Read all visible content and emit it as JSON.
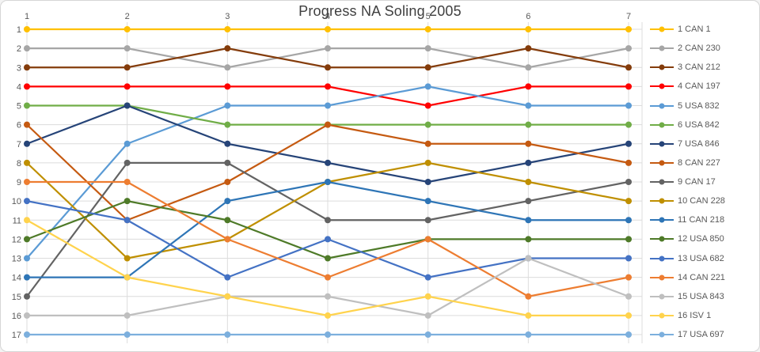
{
  "chart_data": {
    "type": "line",
    "title": "Progress NA Soling 2005",
    "x_labels": [
      "1",
      "2",
      "3",
      "4",
      "5",
      "6",
      "7"
    ],
    "y_labels": [
      "1",
      "2",
      "3",
      "4",
      "5",
      "6",
      "7",
      "8",
      "9",
      "10",
      "11",
      "12",
      "13",
      "14",
      "15",
      "16",
      "17"
    ],
    "xlabel": "",
    "ylabel": "",
    "x_range": [
      1,
      7
    ],
    "y_range": [
      1,
      17
    ],
    "y_inverted": true,
    "grid": true,
    "legend_position": "right",
    "gridline_color": "#dcdcdc",
    "tick_color": "#595959",
    "title_color": "#3f3f3f",
    "series": [
      {
        "name": "1 CAN 1",
        "color": "#FFC000",
        "positions": [
          1,
          1,
          1,
          1,
          1,
          1,
          1
        ]
      },
      {
        "name": "2 CAN 230",
        "color": "#A6A6A6",
        "positions": [
          2,
          2,
          3,
          2,
          2,
          3,
          2
        ]
      },
      {
        "name": "3 CAN 212",
        "color": "#843C0B",
        "positions": [
          3,
          3,
          2,
          3,
          3,
          2,
          3
        ]
      },
      {
        "name": "4 CAN 197",
        "color": "#FF0000",
        "positions": [
          4,
          4,
          4,
          4,
          5,
          4,
          4
        ]
      },
      {
        "name": "5 USA 832",
        "color": "#5B9BD5",
        "positions": [
          13,
          7,
          5,
          5,
          4,
          5,
          5
        ]
      },
      {
        "name": "6 USA 842",
        "color": "#70AD47",
        "positions": [
          5,
          5,
          6,
          6,
          6,
          6,
          6
        ]
      },
      {
        "name": "7 USA 846",
        "color": "#264478",
        "positions": [
          7,
          5,
          7,
          8,
          9,
          8,
          7
        ]
      },
      {
        "name": "8 CAN 227",
        "color": "#C55A11",
        "positions": [
          6,
          11,
          9,
          6,
          7,
          7,
          8
        ]
      },
      {
        "name": "9 CAN 17",
        "color": "#636363",
        "positions": [
          15,
          8,
          8,
          11,
          11,
          10,
          9
        ]
      },
      {
        "name": "10 CAN 228",
        "color": "#BF8F00",
        "positions": [
          8,
          13,
          12,
          9,
          8,
          9,
          10
        ]
      },
      {
        "name": "11 CAN 218",
        "color": "#2E75B6",
        "positions": [
          14,
          14,
          10,
          9,
          10,
          11,
          11
        ]
      },
      {
        "name": "12 USA 850",
        "color": "#4E7A28",
        "positions": [
          12,
          10,
          11,
          13,
          12,
          12,
          12
        ]
      },
      {
        "name": "13 USA 682",
        "color": "#4472C4",
        "positions": [
          10,
          11,
          14,
          12,
          14,
          13,
          13
        ]
      },
      {
        "name": "14 CAN 221",
        "color": "#ED7D31",
        "positions": [
          9,
          9,
          12,
          14,
          12,
          15,
          14
        ]
      },
      {
        "name": "15 USA 843",
        "color": "#BFBFBF",
        "positions": [
          16,
          16,
          15,
          15,
          16,
          13,
          15
        ]
      },
      {
        "name": "16 ISV 1",
        "color": "#FFD34D",
        "positions": [
          11,
          14,
          15,
          16,
          15,
          16,
          16
        ]
      },
      {
        "name": "17 USA 697",
        "color": "#7CAFDD",
        "positions": [
          17,
          17,
          17,
          17,
          17,
          17,
          17
        ]
      }
    ]
  }
}
